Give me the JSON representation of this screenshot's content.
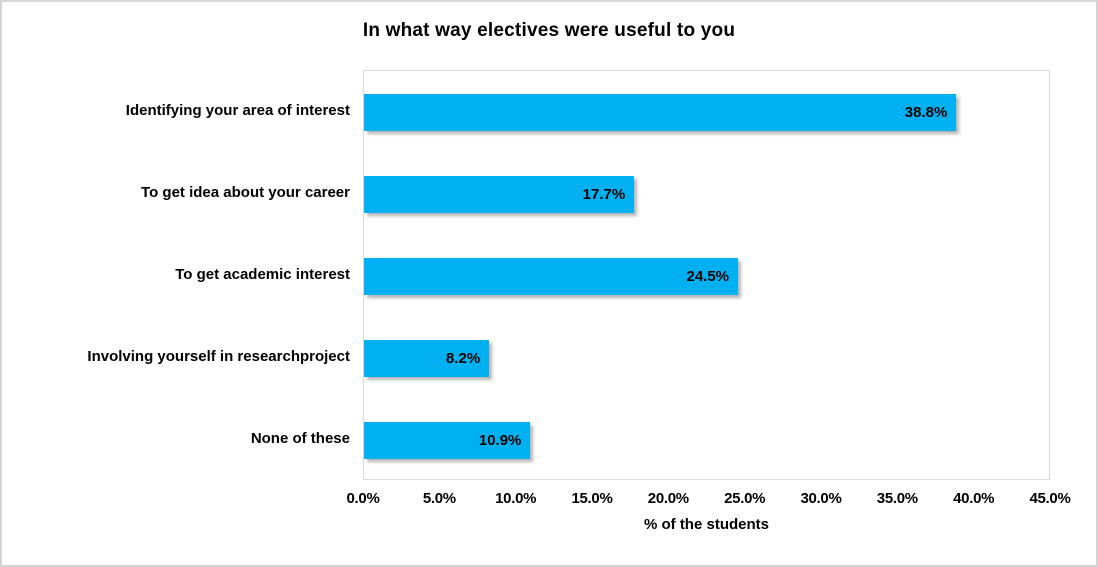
{
  "chart_data": {
    "type": "bar",
    "orientation": "horizontal",
    "title": "In what way electives were useful to you",
    "categories": [
      "Identifying your area of interest",
      "To get idea about your career",
      "To get academic interest",
      "Involving yourself in researchproject",
      "None of these"
    ],
    "values": [
      38.8,
      17.7,
      24.5,
      8.2,
      10.9
    ],
    "data_labels": [
      "38.8%",
      "17.7%",
      "24.5%",
      "8.2%",
      "10.9%"
    ],
    "xlabel": "% of the students",
    "ylabel": "",
    "xlim": [
      0,
      45
    ],
    "x_tick_labels": [
      "0.0%",
      "5.0%",
      "10.0%",
      "15.0%",
      "20.0%",
      "25.0%",
      "30.0%",
      "35.0%",
      "40.0%",
      "45.0%"
    ],
    "grid": "off",
    "legend": "none",
    "bar_color": "#00B0F0",
    "label_color": "#000000",
    "plot_border_color": "#d9d9d9"
  }
}
